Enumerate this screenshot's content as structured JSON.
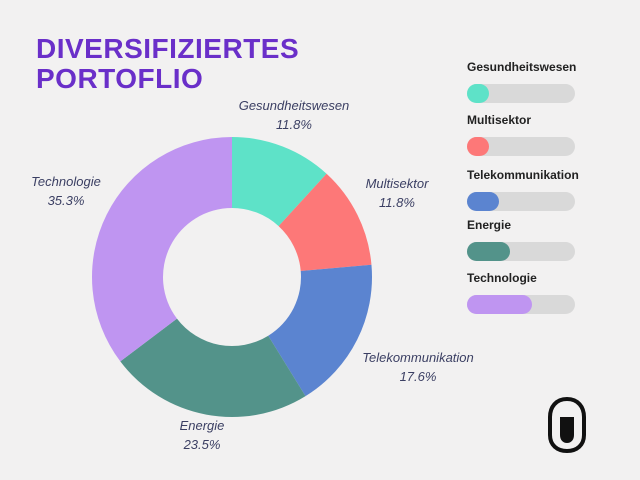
{
  "title_lines": [
    "DIVERSIFIZIERTES",
    "PORTOFLIO"
  ],
  "chart_data": {
    "type": "pie",
    "variant": "donut",
    "categories": [
      "Gesundheitswesen",
      "Multisektor",
      "Telekommunikation",
      "Energie",
      "Technologie"
    ],
    "values": [
      11.8,
      11.8,
      17.6,
      23.5,
      35.3
    ],
    "value_labels": [
      "11.8%",
      "11.8%",
      "17.6%",
      "23.5%",
      "35.3%"
    ],
    "colors": [
      "#5ee2c8",
      "#fd7878",
      "#5b84d0",
      "#53938a",
      "#bf95f1"
    ],
    "legend_position": "right"
  },
  "legend": {
    "items": [
      {
        "label": "Gesundheitswesen",
        "color": "#5ee2c8",
        "fill_fraction": 0.2
      },
      {
        "label": "Multisektor",
        "color": "#fd7878",
        "fill_fraction": 0.2
      },
      {
        "label": "Telekommunikation",
        "color": "#5b84d0",
        "fill_fraction": 0.3
      },
      {
        "label": "Energie",
        "color": "#53938a",
        "fill_fraction": 0.4
      },
      {
        "label": "Technologie",
        "color": "#bf95f1",
        "fill_fraction": 0.6
      }
    ]
  },
  "logo": {
    "icon": "brand-logo-icon",
    "color": "#111111"
  }
}
